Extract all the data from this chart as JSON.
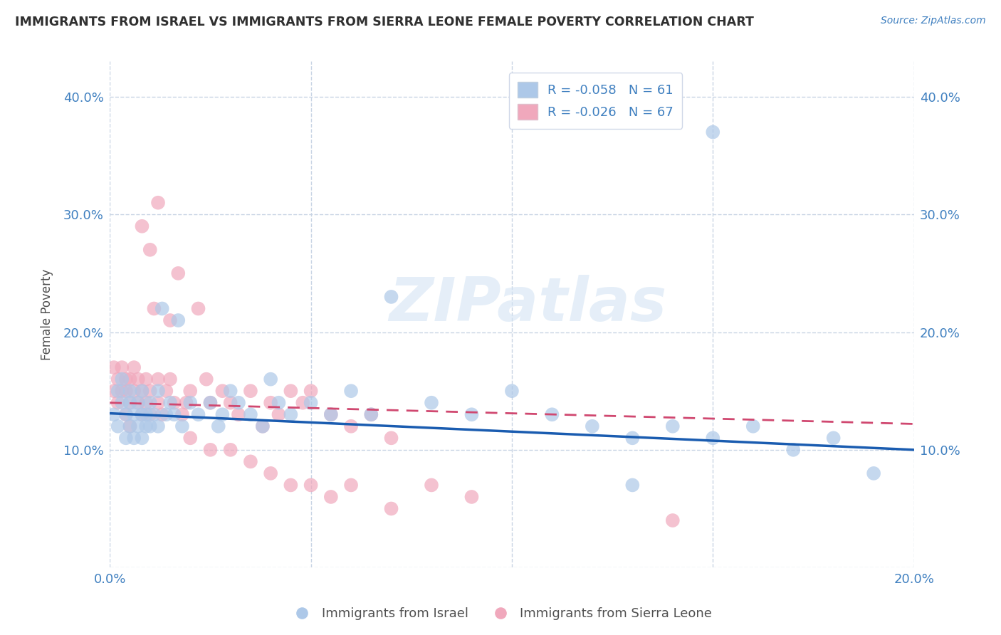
{
  "title": "IMMIGRANTS FROM ISRAEL VS IMMIGRANTS FROM SIERRA LEONE FEMALE POVERTY CORRELATION CHART",
  "source": "Source: ZipAtlas.com",
  "ylabel": "Female Poverty",
  "xlabel": "",
  "xlim": [
    0.0,
    0.2
  ],
  "ylim": [
    0.0,
    0.43
  ],
  "yticks": [
    0.0,
    0.1,
    0.2,
    0.3,
    0.4
  ],
  "ytick_labels_left": [
    "",
    "10.0%",
    "20.0%",
    "30.0%",
    "40.0%"
  ],
  "ytick_labels_right": [
    "",
    "10.0%",
    "20.0%",
    "30.0%",
    "40.0%"
  ],
  "xticks": [
    0.0,
    0.05,
    0.1,
    0.15,
    0.2
  ],
  "xtick_labels": [
    "0.0%",
    "",
    "",
    "",
    "20.0%"
  ],
  "israel_R": -0.058,
  "israel_N": 61,
  "sierraleone_R": -0.026,
  "sierraleone_N": 67,
  "israel_color": "#adc8e8",
  "sierraleone_color": "#f0a8bc",
  "israel_line_color": "#1a5cb0",
  "sierraleone_line_color": "#d04870",
  "legend_israel_label": "Immigrants from Israel",
  "legend_sierraleone_label": "Immigrants from Sierra Leone",
  "watermark": "ZIPatlas",
  "background_color": "#ffffff",
  "grid_color": "#c8d4e4",
  "title_color": "#303030",
  "axis_label_color": "#505050",
  "tick_label_color": "#4080c0",
  "israel_x": [
    0.001,
    0.002,
    0.002,
    0.003,
    0.003,
    0.004,
    0.004,
    0.005,
    0.005,
    0.005,
    0.006,
    0.006,
    0.007,
    0.007,
    0.008,
    0.008,
    0.008,
    0.009,
    0.009,
    0.01,
    0.01,
    0.011,
    0.012,
    0.012,
    0.013,
    0.014,
    0.015,
    0.016,
    0.017,
    0.018,
    0.02,
    0.022,
    0.025,
    0.027,
    0.028,
    0.03,
    0.032,
    0.035,
    0.038,
    0.04,
    0.042,
    0.045,
    0.05,
    0.055,
    0.06,
    0.065,
    0.07,
    0.08,
    0.09,
    0.1,
    0.11,
    0.12,
    0.13,
    0.14,
    0.15,
    0.16,
    0.17,
    0.18,
    0.19,
    0.15,
    0.13
  ],
  "israel_y": [
    0.13,
    0.15,
    0.12,
    0.16,
    0.14,
    0.13,
    0.11,
    0.12,
    0.14,
    0.15,
    0.13,
    0.11,
    0.14,
    0.12,
    0.13,
    0.15,
    0.11,
    0.12,
    0.13,
    0.14,
    0.12,
    0.13,
    0.15,
    0.12,
    0.22,
    0.13,
    0.14,
    0.13,
    0.21,
    0.12,
    0.14,
    0.13,
    0.14,
    0.12,
    0.13,
    0.15,
    0.14,
    0.13,
    0.12,
    0.16,
    0.14,
    0.13,
    0.14,
    0.13,
    0.15,
    0.13,
    0.23,
    0.14,
    0.13,
    0.15,
    0.13,
    0.12,
    0.11,
    0.12,
    0.11,
    0.12,
    0.1,
    0.11,
    0.08,
    0.37,
    0.07
  ],
  "sierraleone_x": [
    0.001,
    0.001,
    0.002,
    0.002,
    0.003,
    0.003,
    0.004,
    0.004,
    0.004,
    0.005,
    0.005,
    0.005,
    0.006,
    0.006,
    0.007,
    0.007,
    0.008,
    0.008,
    0.009,
    0.009,
    0.01,
    0.01,
    0.011,
    0.012,
    0.012,
    0.013,
    0.014,
    0.015,
    0.016,
    0.017,
    0.018,
    0.019,
    0.02,
    0.022,
    0.024,
    0.025,
    0.028,
    0.03,
    0.032,
    0.035,
    0.038,
    0.04,
    0.042,
    0.045,
    0.048,
    0.05,
    0.055,
    0.06,
    0.065,
    0.07,
    0.008,
    0.01,
    0.012,
    0.015,
    0.02,
    0.025,
    0.03,
    0.035,
    0.04,
    0.045,
    0.05,
    0.055,
    0.06,
    0.07,
    0.08,
    0.09,
    0.14
  ],
  "sierraleone_y": [
    0.15,
    0.17,
    0.14,
    0.16,
    0.15,
    0.17,
    0.16,
    0.13,
    0.15,
    0.14,
    0.16,
    0.12,
    0.15,
    0.17,
    0.14,
    0.16,
    0.15,
    0.13,
    0.14,
    0.16,
    0.15,
    0.13,
    0.22,
    0.16,
    0.14,
    0.13,
    0.15,
    0.16,
    0.14,
    0.25,
    0.13,
    0.14,
    0.15,
    0.22,
    0.16,
    0.14,
    0.15,
    0.14,
    0.13,
    0.15,
    0.12,
    0.14,
    0.13,
    0.15,
    0.14,
    0.15,
    0.13,
    0.12,
    0.13,
    0.11,
    0.29,
    0.27,
    0.31,
    0.21,
    0.11,
    0.1,
    0.1,
    0.09,
    0.08,
    0.07,
    0.07,
    0.06,
    0.07,
    0.05,
    0.07,
    0.06,
    0.04
  ],
  "israel_line_x0": 0.0,
  "israel_line_y0": 0.131,
  "israel_line_x1": 0.2,
  "israel_line_y1": 0.1,
  "sl_line_x0": 0.0,
  "sl_line_y0": 0.14,
  "sl_line_x1": 0.2,
  "sl_line_y1": 0.122
}
